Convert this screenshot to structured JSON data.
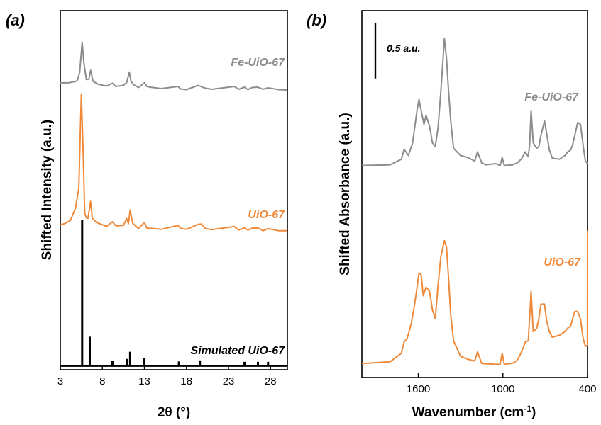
{
  "chart_data": [
    {
      "panel": "(a)",
      "type": "line",
      "xlabel": "2θ (°)",
      "ylabel": "Shifted Intensity (a.u.)",
      "xlim": [
        3,
        30
      ],
      "ylim": [
        0,
        100
      ],
      "xticks": [
        3,
        8,
        13,
        18,
        23,
        28
      ],
      "xtick_labels": [
        "3",
        "8",
        "13",
        "18",
        "23",
        "28"
      ],
      "grid": false,
      "series": [
        {
          "name": "Fe-UiO-67",
          "color": "#8c8c8c",
          "x": [
            3,
            4,
            5,
            5.3,
            5.6,
            5.8,
            6.1,
            6.4,
            6.6,
            6.9,
            7.5,
            8.5,
            9.2,
            9.6,
            10.5,
            10.9,
            11.2,
            11.4,
            11.7,
            12.3,
            13.0,
            13.3,
            13.7,
            15,
            17.0,
            17.3,
            18,
            19.4,
            19.7,
            20.1,
            21,
            23.7,
            24.2,
            24.9,
            25.3,
            25.8,
            26.5,
            27.1,
            27.7,
            29,
            30
          ],
          "y": [
            79.9,
            79.9,
            80.4,
            82.8,
            91.2,
            85.5,
            80.8,
            80.9,
            83.4,
            80.3,
            79.5,
            79.0,
            79.8,
            78.9,
            79.2,
            80.0,
            82.9,
            80.4,
            79.4,
            78.6,
            79.9,
            78.9,
            78.7,
            78.3,
            78.9,
            78.2,
            78.0,
            79.2,
            78.9,
            78.5,
            78.1,
            78.9,
            78.1,
            78.7,
            78.0,
            78.6,
            78.7,
            78.1,
            78.5,
            78.0,
            77.9
          ]
        },
        {
          "name": "UiO-67",
          "color": "#ef8a3b",
          "x": [
            3,
            3.5,
            4.2,
            4.8,
            5.2,
            5.5,
            5.7,
            5.9,
            6.1,
            6.3,
            6.6,
            6.8,
            7.3,
            8.5,
            9.2,
            9.6,
            10.5,
            10.9,
            11.1,
            11.3,
            11.6,
            12.3,
            13.0,
            13.3,
            13.7,
            15,
            17.0,
            17.3,
            18,
            19.4,
            19.8,
            20.2,
            21,
            23.7,
            24.2,
            24.9,
            25.3,
            25.8,
            26.5,
            27.1,
            27.7,
            29,
            30
          ],
          "y": [
            40.3,
            40.7,
            41.6,
            44.9,
            50.6,
            76.7,
            62.0,
            43.6,
            42.3,
            42.2,
            46.9,
            42.2,
            41.0,
            39.9,
            41.2,
            40.1,
            40.2,
            42.1,
            40.7,
            44.5,
            40.8,
            39.3,
            41.0,
            39.4,
            39.4,
            39.1,
            40.2,
            39.4,
            39.1,
            40.5,
            40.6,
            39.4,
            39.0,
            39.9,
            38.9,
            39.5,
            38.9,
            39.4,
            39.5,
            38.7,
            39.3,
            38.7,
            38.7
          ]
        },
        {
          "name": "Simulated UiO-67",
          "color": "#000000",
          "type": "stem",
          "baseline": 1,
          "x": [
            5.6,
            6.5,
            9.2,
            10.9,
            11.3,
            13.0,
            17.1,
            19.6,
            24.9,
            26.5,
            27.7
          ],
          "y": [
            40.8,
            8.2,
            1.5,
            2.0,
            4.0,
            2.3,
            1.3,
            1.6,
            1.2,
            1.2,
            1.2
          ]
        }
      ]
    },
    {
      "panel": "(b)",
      "type": "line",
      "xlabel": "Wavenumber (cm-1)",
      "xlabel_main": "Wavenumber (cm",
      "xlabel_sup": "-1",
      "xlabel_tail": ")",
      "ylabel": "Shifted Absorbance (a.u.)",
      "xlim": [
        2000,
        400
      ],
      "ylim": [
        0,
        100
      ],
      "x_reversed": true,
      "xticks": [
        1600,
        1000,
        400
      ],
      "xtick_labels": [
        "1600",
        "1000",
        "400"
      ],
      "scale_bar": {
        "label": "0.5 a.u.",
        "length": 15
      },
      "grid": false,
      "series": [
        {
          "name": "Fe-UiO-67",
          "color": "#8c8c8c",
          "x": [
            2000,
            1800,
            1720,
            1700,
            1670,
            1640,
            1610,
            1595,
            1580,
            1560,
            1545,
            1520,
            1500,
            1480,
            1460,
            1440,
            1415,
            1400,
            1385,
            1370,
            1350,
            1300,
            1250,
            1200,
            1180,
            1150,
            1120,
            1050,
            1020,
            1005,
            990,
            930,
            900,
            870,
            840,
            820,
            810,
            800,
            785,
            770,
            760,
            745,
            730,
            705,
            690,
            670,
            650,
            600,
            560,
            540,
            520,
            505,
            490,
            470,
            450,
            430,
            415,
            400
          ],
          "y": [
            57.8,
            58.0,
            59.5,
            62.2,
            60.5,
            64.0,
            72.5,
            75.8,
            72.8,
            69.0,
            71.5,
            68.5,
            64.0,
            63.0,
            68.0,
            78.0,
            92.4,
            87.0,
            78.0,
            70.0,
            62.5,
            60.5,
            60.0,
            59.0,
            61.5,
            58.5,
            58.0,
            58.3,
            57.8,
            60.0,
            57.8,
            58.0,
            58.5,
            59.5,
            61.5,
            60.2,
            63.5,
            72.8,
            64.0,
            63.0,
            62.5,
            63.0,
            66.0,
            70.0,
            66.5,
            62.0,
            59.8,
            59.5,
            60.5,
            61.5,
            62.0,
            63.5,
            66.0,
            69.5,
            69.0,
            63.0,
            59.0,
            58.3
          ]
        },
        {
          "name": "UiO-67",
          "color": "#ef8a3b",
          "x": [
            2000,
            1800,
            1720,
            1700,
            1680,
            1650,
            1625,
            1610,
            1595,
            1580,
            1565,
            1545,
            1520,
            1500,
            1480,
            1460,
            1440,
            1415,
            1400,
            1385,
            1370,
            1350,
            1300,
            1250,
            1200,
            1180,
            1150,
            1050,
            1020,
            1005,
            990,
            930,
            900,
            870,
            840,
            820,
            810,
            800,
            785,
            770,
            760,
            745,
            730,
            705,
            690,
            670,
            650,
            600,
            560,
            540,
            520,
            505,
            490,
            470,
            450,
            430,
            415,
            401,
            400
          ],
          "y": [
            3.8,
            4.3,
            6.6,
            9.7,
            10.5,
            14.7,
            20.2,
            24.2,
            28.5,
            28.0,
            22.3,
            24.6,
            23.5,
            18.5,
            16.0,
            25.0,
            33.0,
            37.3,
            35.5,
            27.0,
            17.0,
            10.0,
            5.8,
            5.0,
            4.5,
            7.0,
            3.8,
            3.6,
            3.6,
            6.6,
            3.6,
            3.9,
            4.6,
            6.8,
            9.7,
            10.0,
            16.6,
            23.5,
            12.5,
            13.0,
            13.5,
            16.0,
            20.0,
            20.0,
            15.5,
            12.5,
            11.0,
            11.5,
            12.5,
            13.5,
            14.0,
            16.0,
            18.0,
            18.0,
            16.0,
            10.5,
            8.5,
            8.8,
            40.0
          ]
        }
      ]
    }
  ]
}
